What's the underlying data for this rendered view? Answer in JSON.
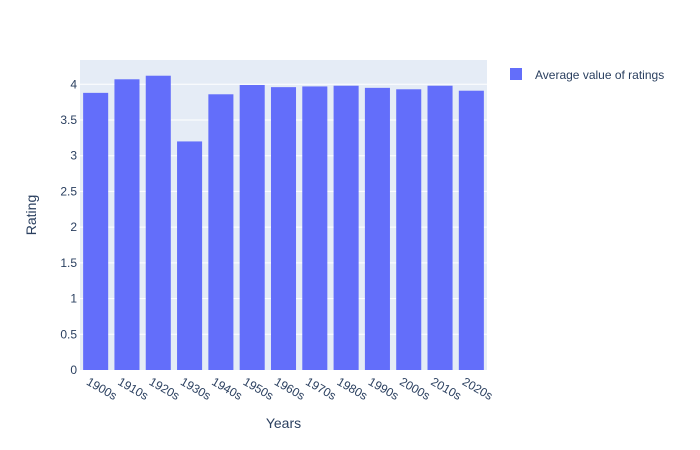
{
  "chart_data": {
    "type": "bar",
    "categories": [
      "1900s",
      "1910s",
      "1920s",
      "1930s",
      "1940s",
      "1950s",
      "1960s",
      "1970s",
      "1980s",
      "1990s",
      "2000s",
      "2010s",
      "2020s"
    ],
    "series": [
      {
        "name": "Average value of ratings",
        "values": [
          3.88,
          4.07,
          4.12,
          3.2,
          3.86,
          3.99,
          3.96,
          3.97,
          3.98,
          3.95,
          3.93,
          3.98,
          3.91
        ]
      }
    ],
    "xlabel": "Years",
    "ylabel": "Rating",
    "ylim": [
      0,
      4.34
    ],
    "yticks": [
      "0",
      "0.5",
      "1",
      "1.5",
      "2",
      "2.5",
      "3",
      "3.5",
      "4"
    ],
    "grid": true,
    "legend_position": "top-right",
    "colors": {
      "bar": "#636efa",
      "plot_background": "#e5ecf6",
      "gridline": "#ffffff",
      "text": "#2a3f5f"
    }
  }
}
